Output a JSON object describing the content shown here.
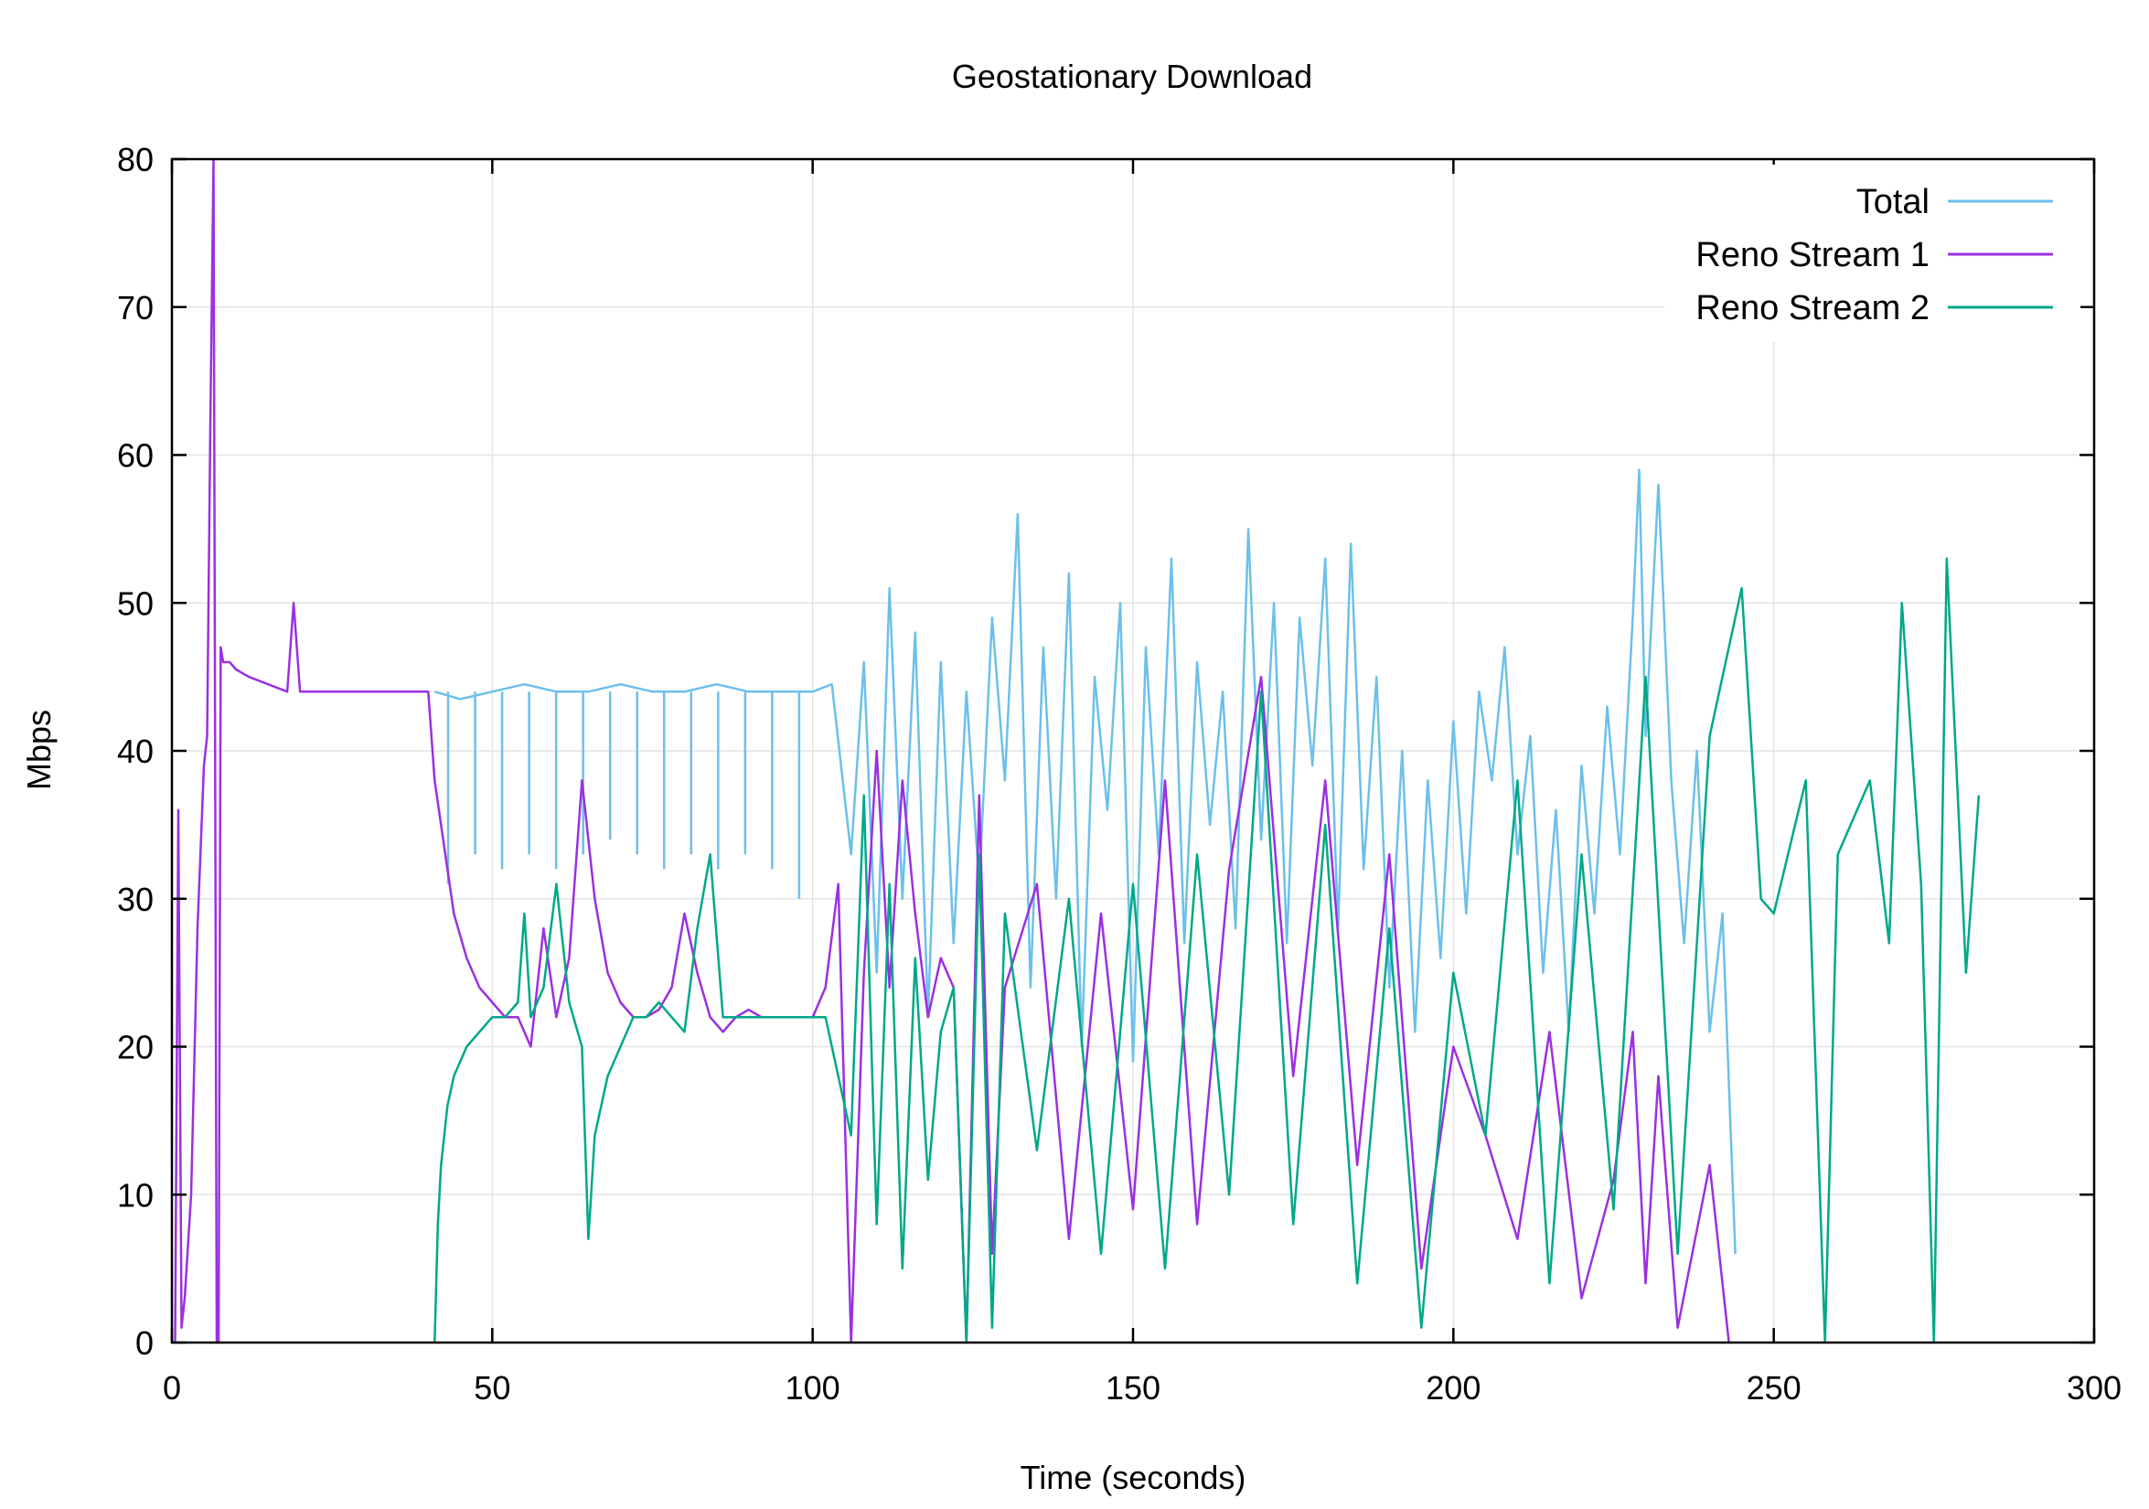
{
  "chart_data": {
    "type": "line",
    "title": "Geostationary Download",
    "xlabel": "Time (seconds)",
    "ylabel": "Mbps",
    "xlim": [
      0,
      300
    ],
    "ylim": [
      0,
      80
    ],
    "xticks": [
      0,
      50,
      100,
      150,
      200,
      250,
      300
    ],
    "yticks": [
      0,
      10,
      20,
      30,
      40,
      50,
      60,
      70,
      80
    ],
    "grid": true,
    "legend_position": "top-right",
    "series": [
      {
        "name": "Total",
        "color": "#6CC0EA",
        "x": [
          41,
          45,
          50,
          55,
          60,
          65,
          70,
          75,
          80,
          85,
          90,
          95,
          100,
          103,
          106,
          108,
          110,
          112,
          114,
          116,
          118,
          120,
          122,
          124,
          126,
          128,
          130,
          132,
          134,
          136,
          138,
          140,
          142,
          144,
          146,
          148,
          150,
          152,
          154,
          156,
          158,
          160,
          162,
          164,
          166,
          168,
          170,
          172,
          174,
          176,
          178,
          180,
          182,
          184,
          186,
          188,
          190,
          192,
          194,
          196,
          198,
          200,
          202,
          204,
          206,
          208,
          210,
          212,
          214,
          216,
          218,
          220,
          222,
          224,
          226,
          228,
          229,
          230,
          232,
          234,
          236,
          238,
          240,
          242,
          244
        ],
        "y": [
          44,
          43.5,
          44,
          44.5,
          44,
          44,
          44.5,
          44,
          44,
          44.5,
          44,
          44,
          44,
          44.5,
          33,
          46,
          25,
          51,
          30,
          48,
          22,
          46,
          27,
          44,
          31,
          49,
          38,
          56,
          24,
          47,
          30,
          52,
          20,
          45,
          36,
          50,
          19,
          47,
          33,
          53,
          27,
          46,
          35,
          44,
          28,
          55,
          34,
          50,
          27,
          49,
          39,
          53,
          28,
          54,
          32,
          45,
          24,
          40,
          21,
          38,
          26,
          42,
          29,
          44,
          38,
          47,
          33,
          41,
          25,
          36,
          21,
          39,
          29,
          43,
          33,
          49,
          59,
          41,
          58,
          38,
          27,
          40,
          21,
          29,
          6
        ],
        "min_dips": [
          31,
          33,
          32,
          33,
          32,
          33,
          34,
          33,
          32,
          33,
          32,
          33,
          32,
          30
        ]
      },
      {
        "name": "Reno Stream 1",
        "color": "#9B30E0",
        "x": [
          0.5,
          1,
          1.5,
          2,
          3,
          4,
          5,
          5.5,
          6,
          6.5,
          7,
          7.3,
          7.6,
          8,
          9,
          10,
          12,
          15,
          18,
          19,
          20,
          25,
          30,
          35,
          40,
          41,
          42,
          44,
          46,
          48,
          50,
          52,
          54,
          56,
          58,
          60,
          62,
          64,
          66,
          68,
          70,
          72,
          74,
          76,
          78,
          80,
          82,
          84,
          86,
          88,
          90,
          92,
          95,
          98,
          100,
          102,
          104,
          106,
          108,
          110,
          112,
          114,
          116,
          118,
          120,
          122,
          124,
          126,
          128,
          130,
          135,
          140,
          145,
          150,
          155,
          160,
          165,
          170,
          175,
          180,
          185,
          190,
          195,
          200,
          205,
          210,
          215,
          220,
          225,
          228,
          230,
          232,
          235,
          240,
          243
        ],
        "y": [
          0,
          36,
          1,
          3,
          10,
          28,
          39,
          41,
          62,
          82,
          0,
          0,
          47,
          46,
          46,
          45.5,
          45,
          44.5,
          44,
          50,
          44,
          44,
          44,
          44,
          44,
          38,
          35,
          29,
          26,
          24,
          23,
          22,
          22,
          20,
          28,
          22,
          26,
          38,
          30,
          25,
          23,
          22,
          22,
          22.5,
          24,
          29,
          25,
          22,
          21,
          22,
          22.5,
          22,
          22,
          22,
          22,
          24,
          31,
          0,
          25,
          40,
          24,
          38,
          29,
          22,
          26,
          24,
          0,
          37,
          6,
          24,
          31,
          7,
          29,
          9,
          38,
          8,
          32,
          45,
          18,
          38,
          12,
          33,
          5,
          20,
          14,
          7,
          21,
          3,
          11,
          21,
          4,
          18,
          1,
          12,
          0
        ]
      },
      {
        "name": "Reno Stream 2",
        "color": "#00A887",
        "x": [
          41,
          41.5,
          42,
          43,
          44,
          46,
          48,
          50,
          52,
          54,
          55,
          56,
          58,
          60,
          62,
          64,
          65,
          66,
          68,
          70,
          72,
          74,
          76,
          78,
          80,
          82,
          84,
          86,
          88,
          90,
          92,
          95,
          98,
          100,
          102,
          104,
          106,
          108,
          110,
          112,
          114,
          116,
          118,
          120,
          122,
          124,
          126,
          128,
          130,
          135,
          140,
          145,
          150,
          155,
          160,
          165,
          170,
          175,
          180,
          185,
          190,
          195,
          200,
          205,
          210,
          215,
          220,
          225,
          230,
          235,
          240,
          245,
          248,
          250,
          255,
          258,
          260,
          265,
          268,
          270,
          273,
          275,
          277,
          280,
          282
        ],
        "y": [
          0,
          8,
          12,
          16,
          18,
          20,
          21,
          22,
          22,
          23,
          29,
          22,
          24,
          31,
          23,
          20,
          7,
          14,
          18,
          20,
          22,
          22,
          23,
          22,
          21,
          28,
          33,
          22,
          22,
          22,
          22,
          22,
          22,
          22,
          22,
          18,
          14,
          37,
          8,
          31,
          5,
          26,
          11,
          21,
          24,
          0,
          33,
          1,
          29,
          13,
          30,
          6,
          31,
          5,
          33,
          10,
          44,
          8,
          35,
          4,
          28,
          1,
          25,
          14,
          38,
          4,
          33,
          9,
          45,
          6,
          41,
          51,
          30,
          29,
          38,
          0,
          33,
          38,
          27,
          50,
          31,
          0,
          53,
          25,
          37
        ]
      }
    ]
  }
}
